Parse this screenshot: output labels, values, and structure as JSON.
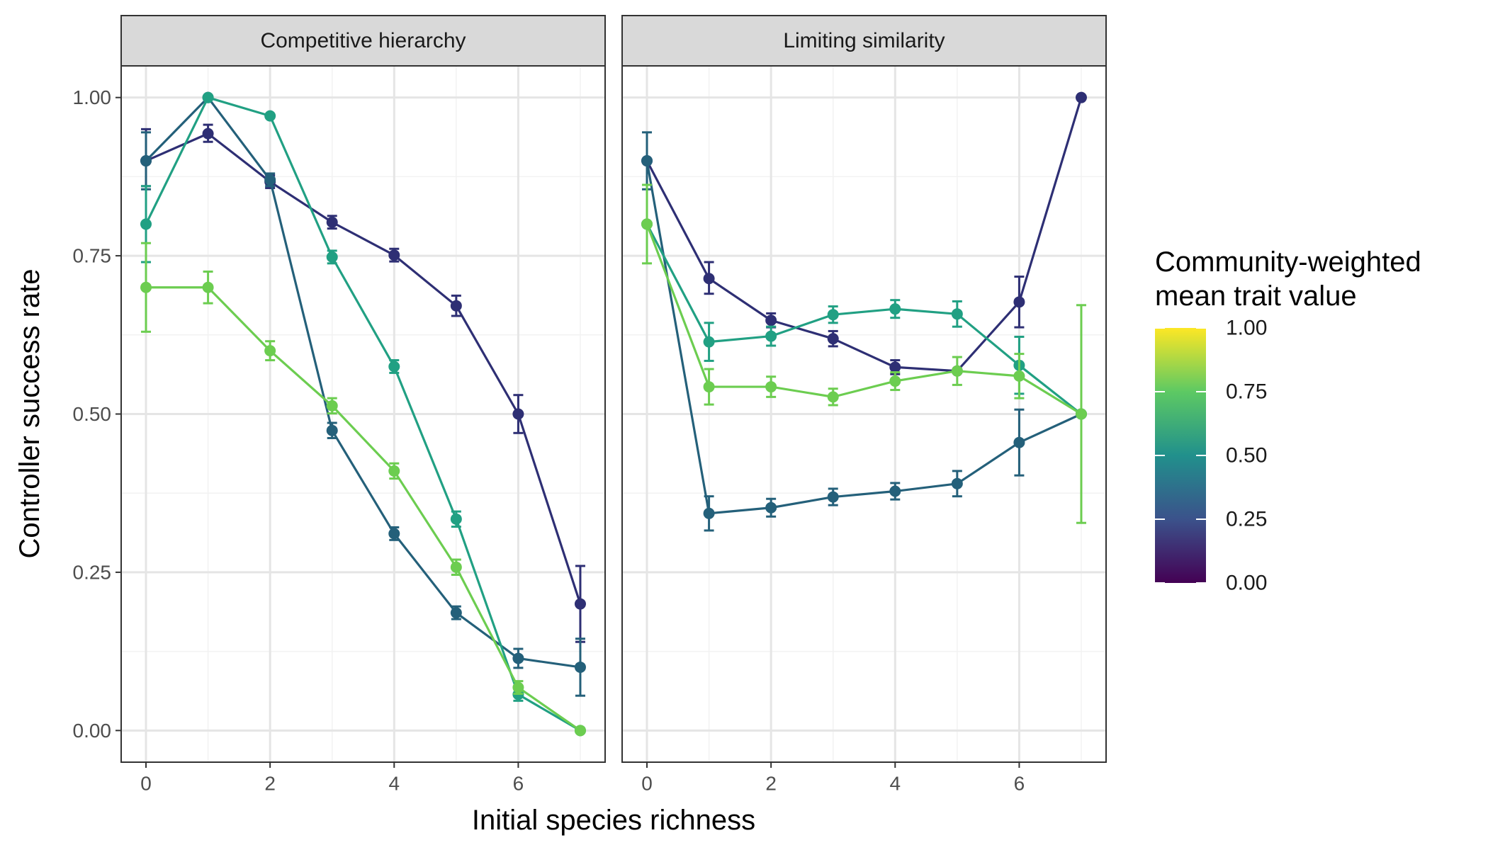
{
  "chart_data": {
    "type": "line",
    "xlabel": "Initial species richness",
    "ylabel": "Controller success rate",
    "xlim": [
      -0.4,
      7.4
    ],
    "ylim": [
      -0.05,
      1.05
    ],
    "x_ticks": [
      0,
      2,
      4,
      6
    ],
    "y_ticks": [
      0.0,
      0.25,
      0.5,
      0.75,
      1.0
    ],
    "y_tick_labels": [
      "0.00",
      "0.25",
      "0.50",
      "0.75",
      "1.00"
    ],
    "x_tick_labels": [
      "0",
      "2",
      "4",
      "6"
    ],
    "grid": true,
    "legend": {
      "title_line1": "Community-weighted",
      "title_line2": "mean trait value",
      "type": "colorbar",
      "placement": "right",
      "breaks": [
        0.0,
        0.25,
        0.5,
        0.75,
        1.0
      ],
      "labels": [
        "0.00",
        "0.25",
        "0.50",
        "0.75",
        "1.00"
      ],
      "palette": [
        "#440154",
        "#3b528b",
        "#21908c",
        "#5dc963",
        "#fde725"
      ]
    },
    "panels": [
      {
        "title": "Competitive hierarchy",
        "series": [
          {
            "trait": 0.2,
            "color": "#2e2f74",
            "points": [
              {
                "x": 0,
                "y": 0.9,
                "lo": 0.86,
                "hi": 0.95
              },
              {
                "x": 1,
                "y": 0.943,
                "lo": 0.93,
                "hi": 0.957
              },
              {
                "x": 2,
                "y": 0.867,
                "lo": 0.857,
                "hi": 0.877
              },
              {
                "x": 3,
                "y": 0.803,
                "lo": 0.793,
                "hi": 0.813
              },
              {
                "x": 4,
                "y": 0.751,
                "lo": 0.741,
                "hi": 0.761
              },
              {
                "x": 5,
                "y": 0.671,
                "lo": 0.655,
                "hi": 0.687
              },
              {
                "x": 6,
                "y": 0.5,
                "lo": 0.47,
                "hi": 0.53
              },
              {
                "x": 7,
                "y": 0.2,
                "lo": 0.14,
                "hi": 0.26
              }
            ]
          },
          {
            "trait": 0.4,
            "color": "#24607a",
            "points": [
              {
                "x": 0,
                "y": 0.9,
                "lo": 0.855,
                "hi": 0.945
              },
              {
                "x": 1,
                "y": 1.0
              },
              {
                "x": 2,
                "y": 0.87,
                "lo": 0.86,
                "hi": 0.88
              },
              {
                "x": 3,
                "y": 0.474,
                "lo": 0.462,
                "hi": 0.486
              },
              {
                "x": 4,
                "y": 0.311,
                "lo": 0.301,
                "hi": 0.321
              },
              {
                "x": 5,
                "y": 0.186,
                "lo": 0.176,
                "hi": 0.196
              },
              {
                "x": 6,
                "y": 0.114,
                "lo": 0.099,
                "hi": 0.129
              },
              {
                "x": 7,
                "y": 0.1,
                "lo": 0.055,
                "hi": 0.145
              }
            ]
          },
          {
            "trait": 0.6,
            "color": "#21a083",
            "points": [
              {
                "x": 0,
                "y": 0.8,
                "lo": 0.74,
                "hi": 0.86
              },
              {
                "x": 1,
                "y": 1.0
              },
              {
                "x": 2,
                "y": 0.971
              },
              {
                "x": 3,
                "y": 0.748,
                "lo": 0.738,
                "hi": 0.758
              },
              {
                "x": 4,
                "y": 0.575,
                "lo": 0.565,
                "hi": 0.585
              },
              {
                "x": 5,
                "y": 0.334,
                "lo": 0.322,
                "hi": 0.346
              },
              {
                "x": 6,
                "y": 0.057,
                "lo": 0.047,
                "hi": 0.067
              },
              {
                "x": 7,
                "y": 0.0
              }
            ]
          },
          {
            "trait": 0.8,
            "color": "#6ccd50",
            "points": [
              {
                "x": 0,
                "y": 0.7,
                "lo": 0.63,
                "hi": 0.77
              },
              {
                "x": 1,
                "y": 0.7,
                "lo": 0.675,
                "hi": 0.725
              },
              {
                "x": 2,
                "y": 0.6,
                "lo": 0.585,
                "hi": 0.615
              },
              {
                "x": 3,
                "y": 0.513,
                "lo": 0.501,
                "hi": 0.525
              },
              {
                "x": 4,
                "y": 0.41,
                "lo": 0.398,
                "hi": 0.422
              },
              {
                "x": 5,
                "y": 0.258,
                "lo": 0.246,
                "hi": 0.27
              },
              {
                "x": 6,
                "y": 0.068,
                "lo": 0.058,
                "hi": 0.078
              },
              {
                "x": 7,
                "y": 0.0
              }
            ]
          }
        ]
      },
      {
        "title": "Limiting similarity",
        "series": [
          {
            "trait": 0.2,
            "color": "#2e2f74",
            "points": [
              {
                "x": 0,
                "y": 0.9
              },
              {
                "x": 1,
                "y": 0.714,
                "lo": 0.69,
                "hi": 0.74
              },
              {
                "x": 2,
                "y": 0.648,
                "lo": 0.637,
                "hi": 0.659
              },
              {
                "x": 3,
                "y": 0.619,
                "lo": 0.607,
                "hi": 0.631
              },
              {
                "x": 4,
                "y": 0.574,
                "lo": 0.563,
                "hi": 0.585
              },
              {
                "x": 5,
                "y": 0.568
              },
              {
                "x": 6,
                "y": 0.677,
                "lo": 0.637,
                "hi": 0.717
              },
              {
                "x": 7,
                "y": 1.0
              }
            ]
          },
          {
            "trait": 0.4,
            "color": "#24607a",
            "points": [
              {
                "x": 0,
                "y": 0.9,
                "lo": 0.855,
                "hi": 0.945
              },
              {
                "x": 1,
                "y": 0.343,
                "lo": 0.316,
                "hi": 0.37
              },
              {
                "x": 2,
                "y": 0.352,
                "lo": 0.338,
                "hi": 0.366
              },
              {
                "x": 3,
                "y": 0.369,
                "lo": 0.356,
                "hi": 0.382
              },
              {
                "x": 4,
                "y": 0.378,
                "lo": 0.365,
                "hi": 0.391
              },
              {
                "x": 5,
                "y": 0.39,
                "lo": 0.37,
                "hi": 0.41
              },
              {
                "x": 6,
                "y": 0.455,
                "lo": 0.403,
                "hi": 0.507
              },
              {
                "x": 7,
                "y": 0.5
              }
            ]
          },
          {
            "trait": 0.6,
            "color": "#21a083",
            "points": [
              {
                "x": 0,
                "y": 0.8
              },
              {
                "x": 1,
                "y": 0.614,
                "lo": 0.584,
                "hi": 0.644
              },
              {
                "x": 2,
                "y": 0.623,
                "lo": 0.608,
                "hi": 0.638
              },
              {
                "x": 3,
                "y": 0.657,
                "lo": 0.644,
                "hi": 0.67
              },
              {
                "x": 4,
                "y": 0.666,
                "lo": 0.652,
                "hi": 0.68
              },
              {
                "x": 5,
                "y": 0.658,
                "lo": 0.638,
                "hi": 0.678
              },
              {
                "x": 6,
                "y": 0.577,
                "lo": 0.532,
                "hi": 0.622
              },
              {
                "x": 7,
                "y": 0.5
              }
            ]
          },
          {
            "trait": 0.8,
            "color": "#6ccd50",
            "points": [
              {
                "x": 0,
                "y": 0.8,
                "lo": 0.738,
                "hi": 0.862
              },
              {
                "x": 1,
                "y": 0.543,
                "lo": 0.515,
                "hi": 0.571
              },
              {
                "x": 2,
                "y": 0.543,
                "lo": 0.527,
                "hi": 0.559
              },
              {
                "x": 3,
                "y": 0.527,
                "lo": 0.514,
                "hi": 0.54
              },
              {
                "x": 4,
                "y": 0.552,
                "lo": 0.538,
                "hi": 0.566
              },
              {
                "x": 5,
                "y": 0.568,
                "lo": 0.546,
                "hi": 0.59
              },
              {
                "x": 6,
                "y": 0.56,
                "lo": 0.525,
                "hi": 0.595
              },
              {
                "x": 7,
                "y": 0.5,
                "lo": 0.328,
                "hi": 0.672
              }
            ]
          }
        ]
      }
    ]
  }
}
